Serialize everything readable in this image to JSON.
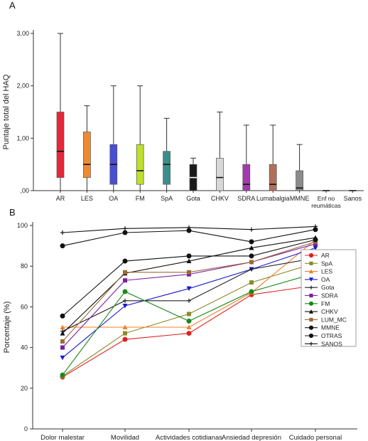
{
  "panels": {
    "a_label": "A",
    "b_label": "B"
  },
  "chart_data": [
    {
      "type": "box",
      "ylabel": "Puntaje total del HAQ",
      "ylim": [
        0,
        3
      ],
      "yticks": [
        0,
        1,
        2,
        3
      ],
      "ytick_labels": [
        ",00",
        "1,00",
        "2,00",
        "3,00"
      ],
      "grid": false,
      "categories": [
        "AR",
        "LES",
        "OA",
        "FM",
        "SpA",
        "Gota",
        "CHKV",
        "SDRA",
        "Lumabalgia",
        "MMNE",
        "Enf no reumáticas",
        "Sanos"
      ],
      "boxes": [
        {
          "category": "AR",
          "min": 0,
          "q1": 0.25,
          "median": 0.75,
          "q3": 1.5,
          "max": 3.0,
          "color": "#e8263a"
        },
        {
          "category": "LES",
          "min": 0,
          "q1": 0.25,
          "median": 0.5,
          "q3": 1.12,
          "max": 1.62,
          "color": "#f08a30"
        },
        {
          "category": "OA",
          "min": 0,
          "q1": 0.12,
          "median": 0.5,
          "q3": 0.88,
          "max": 2.0,
          "color": "#4a4fd0"
        },
        {
          "category": "FM",
          "min": 0,
          "q1": 0.12,
          "median": 0.38,
          "q3": 0.88,
          "max": 2.0,
          "color": "#bde02a"
        },
        {
          "category": "SpA",
          "min": 0,
          "q1": 0.12,
          "median": 0.5,
          "q3": 0.75,
          "max": 1.38,
          "color": "#3a8f8a"
        },
        {
          "category": "Gota",
          "min": 0,
          "q1": 0,
          "median": 0.25,
          "q3": 0.5,
          "max": 0.62,
          "color": "#1a1a1a"
        },
        {
          "category": "CHKV",
          "min": 0,
          "q1": 0,
          "median": 0.25,
          "q3": 0.62,
          "max": 1.5,
          "color": "#d8d8d8"
        },
        {
          "category": "SDRA",
          "min": 0,
          "q1": 0,
          "median": 0.12,
          "q3": 0.5,
          "max": 1.25,
          "color": "#a23bb0"
        },
        {
          "category": "Lumabalgia",
          "min": 0,
          "q1": 0,
          "median": 0.12,
          "q3": 0.5,
          "max": 1.25,
          "color": "#b0705a"
        },
        {
          "category": "MMNE",
          "min": 0,
          "q1": 0,
          "median": 0.05,
          "q3": 0.38,
          "max": 0.88,
          "color": "#8c8c8c"
        },
        {
          "category": "Enf no reumáticas",
          "min": 0,
          "q1": 0,
          "median": 0,
          "q3": 0,
          "max": 0,
          "color": "#8c8c8c"
        },
        {
          "category": "Sanos",
          "min": 0,
          "q1": 0,
          "median": 0,
          "q3": 0,
          "max": 0,
          "color": "#8c8c8c"
        }
      ]
    },
    {
      "type": "line",
      "ylabel": "Porcentaje (%)",
      "ylim": [
        0,
        100
      ],
      "yticks": [
        0,
        20,
        40,
        60,
        80,
        100
      ],
      "grid": false,
      "legend_position": "right",
      "categories": [
        "Dolor malestar",
        "Movilidad",
        "Actividades cotidianas",
        "Ansiedad depresión",
        "Cuidado personal"
      ],
      "series": [
        {
          "name": "AR",
          "color": "#e01f1f",
          "marker": "circle",
          "values": [
            25.5,
            44,
            47,
            66,
            70.5
          ]
        },
        {
          "name": "SpA",
          "color": "#8a8a2a",
          "marker": "square",
          "values": [
            26,
            47,
            56.5,
            72,
            81.5
          ]
        },
        {
          "name": "LES",
          "color": "#f07f2a",
          "marker": "triangle-up",
          "values": [
            50,
            50,
            50,
            67,
            93
          ]
        },
        {
          "name": "OA",
          "color": "#1a1ad0",
          "marker": "triangle-down",
          "values": [
            35,
            60.5,
            69,
            78.5,
            89
          ]
        },
        {
          "name": "Gota",
          "color": "#222222",
          "marker": "plus",
          "values": [
            48,
            63,
            63,
            78.5,
            84
          ]
        },
        {
          "name": "SDRA",
          "color": "#7a1fa0",
          "marker": "square",
          "values": [
            40,
            73,
            76,
            82,
            91
          ]
        },
        {
          "name": "FM",
          "color": "#178a17",
          "marker": "circle",
          "values": [
            26.5,
            67.5,
            53,
            67.5,
            76.5
          ]
        },
        {
          "name": "CHKV",
          "color": "#111111",
          "marker": "triangle-up",
          "values": [
            47,
            76.5,
            82.5,
            89,
            94
          ]
        },
        {
          "name": "LUM_MC",
          "color": "#9a6a3a",
          "marker": "square",
          "values": [
            43,
            77,
            77,
            82,
            92
          ]
        },
        {
          "name": "MMNE",
          "color": "#111111",
          "marker": "circle",
          "values": [
            55.5,
            82.5,
            85,
            85,
            93
          ]
        },
        {
          "name": "OTRAS",
          "color": "#111111",
          "marker": "circle",
          "values": [
            90,
            96.5,
            97.5,
            92,
            98
          ]
        },
        {
          "name": "SANOS",
          "color": "#111111",
          "marker": "plus",
          "values": [
            96.5,
            98.5,
            99,
            98,
            99.5
          ]
        }
      ]
    }
  ]
}
